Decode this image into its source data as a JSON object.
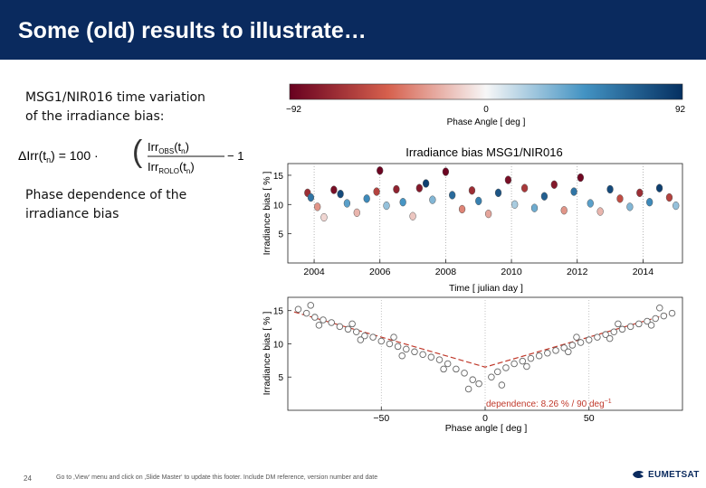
{
  "slide": {
    "title": "Some (old) results to illustrate…",
    "text1_line1": "MSG1/NIR016  time  variation",
    "text1_line2": "of the irradiance bias:",
    "text2_line1": "Phase dependence of the",
    "text2_line2": "irradiance bias",
    "formula": {
      "lhs": "ΔIrr(t",
      "sub_n": "n",
      "eq": ") = 100 ·",
      "num": "Irr",
      "num_sub": "OBS",
      "den": "Irr",
      "den_sub": "ROLO",
      "arg": "(t",
      "minus_one": "− 1"
    },
    "page_number": "24",
    "footer": "Go to ‚View‘ menu and click on ‚Slide Master‘ to update this footer. Include DM reference, version number and date",
    "logo_text": "EUMETSAT"
  },
  "chart_data": [
    {
      "type": "scatter",
      "title": "Irradiance bias MSG1/NIR016",
      "xlabel": "Time [ julian day ]",
      "ylabel": "Irradiance bias [ % ]",
      "xlim": [
        2003.2,
        2015.2
      ],
      "ylim": [
        0,
        17
      ],
      "xticks": [
        2004,
        2006,
        2008,
        2010,
        2012,
        2014
      ],
      "yticks": [
        5,
        10,
        15
      ],
      "color_by": "phase_angle",
      "colorbar": {
        "label": "Phase Angle [ deg ]",
        "min": -92,
        "max": 92,
        "ticks": [
          "−92",
          "0",
          "92"
        ],
        "colors": [
          "#67001f",
          "#d6604d",
          "#f7f7f7",
          "#4393c3",
          "#053061"
        ]
      },
      "points": [
        {
          "x": 2003.8,
          "y": 12.0,
          "phase": -70
        },
        {
          "x": 2003.9,
          "y": 11.2,
          "phase": 60
        },
        {
          "x": 2004.1,
          "y": 9.6,
          "phase": -30
        },
        {
          "x": 2004.3,
          "y": 7.8,
          "phase": -10
        },
        {
          "x": 2004.6,
          "y": 12.5,
          "phase": -85
        },
        {
          "x": 2004.8,
          "y": 11.8,
          "phase": 80
        },
        {
          "x": 2005.0,
          "y": 10.2,
          "phase": 40
        },
        {
          "x": 2005.3,
          "y": 8.6,
          "phase": -20
        },
        {
          "x": 2005.6,
          "y": 11.0,
          "phase": 50
        },
        {
          "x": 2005.9,
          "y": 12.2,
          "phase": -60
        },
        {
          "x": 2006.0,
          "y": 15.8,
          "phase": -90
        },
        {
          "x": 2006.2,
          "y": 9.8,
          "phase": 25
        },
        {
          "x": 2006.5,
          "y": 12.6,
          "phase": -75
        },
        {
          "x": 2006.7,
          "y": 10.4,
          "phase": 45
        },
        {
          "x": 2007.0,
          "y": 8.0,
          "phase": -15
        },
        {
          "x": 2007.2,
          "y": 12.8,
          "phase": -80
        },
        {
          "x": 2007.4,
          "y": 13.6,
          "phase": 85
        },
        {
          "x": 2007.6,
          "y": 10.8,
          "phase": 30
        },
        {
          "x": 2008.0,
          "y": 15.6,
          "phase": -90
        },
        {
          "x": 2008.2,
          "y": 11.6,
          "phase": 65
        },
        {
          "x": 2008.5,
          "y": 9.2,
          "phase": -35
        },
        {
          "x": 2008.8,
          "y": 12.4,
          "phase": -70
        },
        {
          "x": 2009.0,
          "y": 10.6,
          "phase": 55
        },
        {
          "x": 2009.3,
          "y": 8.4,
          "phase": -25
        },
        {
          "x": 2009.6,
          "y": 12.0,
          "phase": 75
        },
        {
          "x": 2009.9,
          "y": 14.2,
          "phase": -85
        },
        {
          "x": 2010.1,
          "y": 10.0,
          "phase": 20
        },
        {
          "x": 2010.4,
          "y": 12.8,
          "phase": -65
        },
        {
          "x": 2010.7,
          "y": 9.4,
          "phase": 35
        },
        {
          "x": 2011.0,
          "y": 11.4,
          "phase": 70
        },
        {
          "x": 2011.3,
          "y": 13.4,
          "phase": -80
        },
        {
          "x": 2011.6,
          "y": 9.0,
          "phase": -30
        },
        {
          "x": 2011.9,
          "y": 12.2,
          "phase": 60
        },
        {
          "x": 2012.1,
          "y": 14.6,
          "phase": -88
        },
        {
          "x": 2012.4,
          "y": 10.2,
          "phase": 40
        },
        {
          "x": 2012.7,
          "y": 8.8,
          "phase": -20
        },
        {
          "x": 2013.0,
          "y": 12.6,
          "phase": 80
        },
        {
          "x": 2013.3,
          "y": 11.0,
          "phase": -55
        },
        {
          "x": 2013.6,
          "y": 9.6,
          "phase": 30
        },
        {
          "x": 2013.9,
          "y": 12.0,
          "phase": -70
        },
        {
          "x": 2014.2,
          "y": 10.4,
          "phase": 50
        },
        {
          "x": 2014.5,
          "y": 12.8,
          "phase": 85
        },
        {
          "x": 2014.8,
          "y": 11.2,
          "phase": -60
        },
        {
          "x": 2015.0,
          "y": 9.8,
          "phase": 25
        }
      ]
    },
    {
      "type": "scatter",
      "xlabel": "Phase angle [ deg ]",
      "ylabel": "Irradiance bias [ % ]",
      "xlim": [
        -95,
        95
      ],
      "ylim": [
        0,
        17
      ],
      "xticks": [
        -50,
        0,
        50
      ],
      "yticks": [
        5,
        10,
        15
      ],
      "annotation": "dependence:  8.26 % / 90 deg",
      "annotation_exponent": "−1",
      "fit_line": [
        {
          "x": -92,
          "y": 14.8
        },
        {
          "x": 0,
          "y": 6.5
        },
        {
          "x": 92,
          "y": 14.8
        }
      ],
      "points": [
        {
          "x": -90,
          "y": 15.2
        },
        {
          "x": -86,
          "y": 14.6
        },
        {
          "x": -82,
          "y": 14.0
        },
        {
          "x": -78,
          "y": 13.6
        },
        {
          "x": -74,
          "y": 13.2
        },
        {
          "x": -70,
          "y": 12.6
        },
        {
          "x": -66,
          "y": 12.2
        },
        {
          "x": -62,
          "y": 11.8
        },
        {
          "x": -58,
          "y": 11.2
        },
        {
          "x": -54,
          "y": 11.0
        },
        {
          "x": -50,
          "y": 10.4
        },
        {
          "x": -46,
          "y": 10.0
        },
        {
          "x": -42,
          "y": 9.6
        },
        {
          "x": -38,
          "y": 9.2
        },
        {
          "x": -34,
          "y": 8.8
        },
        {
          "x": -30,
          "y": 8.4
        },
        {
          "x": -26,
          "y": 8.0
        },
        {
          "x": -22,
          "y": 7.6
        },
        {
          "x": -18,
          "y": 7.0
        },
        {
          "x": -14,
          "y": 6.2
        },
        {
          "x": -10,
          "y": 5.6
        },
        {
          "x": -6,
          "y": 4.6
        },
        {
          "x": -3,
          "y": 4.0
        },
        {
          "x": 3,
          "y": 5.0
        },
        {
          "x": 6,
          "y": 5.8
        },
        {
          "x": 10,
          "y": 6.4
        },
        {
          "x": 14,
          "y": 7.0
        },
        {
          "x": 18,
          "y": 7.4
        },
        {
          "x": 22,
          "y": 7.8
        },
        {
          "x": 26,
          "y": 8.2
        },
        {
          "x": 30,
          "y": 8.6
        },
        {
          "x": 34,
          "y": 9.0
        },
        {
          "x": 38,
          "y": 9.4
        },
        {
          "x": 42,
          "y": 9.8
        },
        {
          "x": 46,
          "y": 10.2
        },
        {
          "x": 50,
          "y": 10.6
        },
        {
          "x": 54,
          "y": 11.0
        },
        {
          "x": 58,
          "y": 11.4
        },
        {
          "x": 62,
          "y": 11.8
        },
        {
          "x": 66,
          "y": 12.2
        },
        {
          "x": 70,
          "y": 12.6
        },
        {
          "x": 74,
          "y": 13.0
        },
        {
          "x": 78,
          "y": 13.4
        },
        {
          "x": 82,
          "y": 13.8
        },
        {
          "x": 86,
          "y": 14.2
        },
        {
          "x": 90,
          "y": 14.6
        },
        {
          "x": -80,
          "y": 12.8
        },
        {
          "x": -60,
          "y": 10.6
        },
        {
          "x": -40,
          "y": 8.2
        },
        {
          "x": -20,
          "y": 6.2
        },
        {
          "x": 20,
          "y": 6.6
        },
        {
          "x": 40,
          "y": 8.8
        },
        {
          "x": 60,
          "y": 10.8
        },
        {
          "x": 80,
          "y": 12.8
        },
        {
          "x": -84,
          "y": 15.8
        },
        {
          "x": -64,
          "y": 13.0
        },
        {
          "x": -44,
          "y": 11.0
        },
        {
          "x": 44,
          "y": 11.0
        },
        {
          "x": 64,
          "y": 13.0
        },
        {
          "x": 84,
          "y": 15.4
        },
        {
          "x": -8,
          "y": 3.2
        },
        {
          "x": 8,
          "y": 3.8
        }
      ]
    }
  ]
}
